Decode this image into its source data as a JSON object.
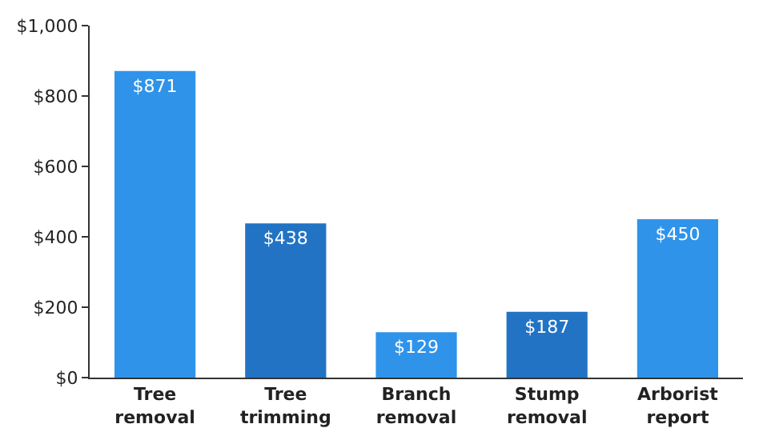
{
  "chart_data": {
    "type": "bar",
    "categories": [
      "Tree removal",
      "Tree trimming",
      "Branch removal",
      "Stump removal",
      "Arborist report"
    ],
    "values": [
      871,
      438,
      129,
      187,
      450
    ],
    "colors": [
      "#2f93ea",
      "#2273c4",
      "#2f93ea",
      "#2273c4",
      "#2f93ea"
    ],
    "value_labels": [
      "$871",
      "$438",
      "$129",
      "$187",
      "$450"
    ],
    "ylim": [
      0,
      1000
    ],
    "yticks": [
      {
        "value": 0,
        "label": "$0"
      },
      {
        "value": 200,
        "label": "$200"
      },
      {
        "value": 400,
        "label": "$400"
      },
      {
        "value": 600,
        "label": "$600"
      },
      {
        "value": 800,
        "label": "$800"
      },
      {
        "value": 1000,
        "label": "$1,000"
      }
    ],
    "grid": false
  }
}
